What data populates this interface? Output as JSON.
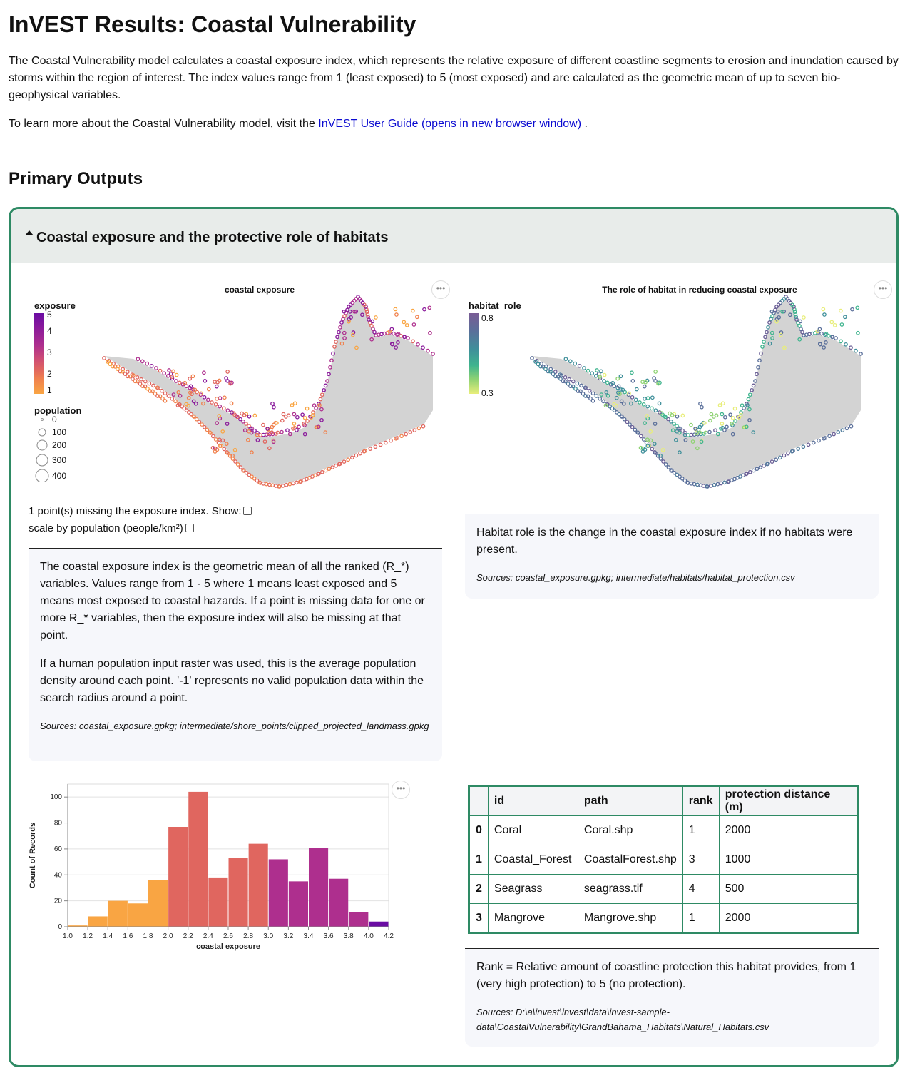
{
  "page": {
    "title": "InVEST Results: Coastal Vulnerability",
    "intro": "The Coastal Vulnerability model calculates a coastal exposure index, which represents the relative exposure of different coastline segments to erosion and inundation caused by storms within the region of interest. The index values range from 1 (least exposed) to 5 (most exposed) and are calculated as the geometric mean of up to seven bio-geophysical variables.",
    "learn_prefix": "To learn more about the Coastal Vulnerability model, visit the ",
    "learn_link": "InVEST User Guide (opens in new browser window) ",
    "learn_suffix": ".",
    "section_heading": "Primary Outputs"
  },
  "panel": {
    "title": "Coastal exposure and the protective role of habitats"
  },
  "exposure_map": {
    "title": "coastal exposure",
    "menu": "•••",
    "legend_exposure_title": "exposure",
    "legend_exposure_labels": [
      "5",
      "4",
      "3",
      "2",
      "1"
    ],
    "legend_population_title": "population",
    "legend_population_labels": [
      "0",
      "100",
      "200",
      "300",
      "400"
    ],
    "missing_text": "1 point(s) missing the exposure index. Show:",
    "scale_text": "scale by population (people/km²)"
  },
  "exposure_note": {
    "p1": "The coastal exposure index is the geometric mean of all the ranked (R_*) variables. Values range from 1 - 5 where 1 means least exposed and 5 means most exposed to coastal hazards. If a point is missing data for one or more R_* variables, then the exposure index will also be missing at that point.",
    "p2": "If a human population input raster was used, this is the average population density around each point. '-1' represents no valid population data within the search radius around a point.",
    "sources": "Sources: coastal_exposure.gpkg; intermediate/shore_points/clipped_projected_landmass.gpkg"
  },
  "habitat_map": {
    "title": "The role of habitat in reducing coastal exposure",
    "menu": "•••",
    "legend_title": "habitat_role",
    "legend_max": "0.8",
    "legend_min": "0.3"
  },
  "habitat_note": {
    "p1": "Habitat role is the change in the coastal exposure index if no habitats were present.",
    "sources": "Sources: coastal_exposure.gpkg; intermediate/habitats/habitat_protection.csv"
  },
  "histogram_menu": "•••",
  "chart_data": {
    "type": "bar",
    "title": "",
    "xlabel": "coastal exposure",
    "ylabel": "Count of Records",
    "bin_edges": [
      1.0,
      1.2,
      1.4,
      1.6,
      1.8,
      2.0,
      2.2,
      2.4,
      2.6,
      2.8,
      3.0,
      3.2,
      3.4,
      3.6,
      3.8,
      4.0,
      4.2
    ],
    "x_tick_labels": [
      "1.0",
      "1.2",
      "1.4",
      "1.6",
      "1.8",
      "2.0",
      "2.2",
      "2.4",
      "2.6",
      "2.8",
      "3.0",
      "3.2",
      "3.4",
      "3.6",
      "3.8",
      "4.0",
      "4.2"
    ],
    "values": [
      1,
      8,
      20,
      18,
      36,
      77,
      104,
      38,
      53,
      64,
      52,
      35,
      61,
      37,
      11,
      4
    ],
    "colors": [
      "#f9a543",
      "#f9a543",
      "#f9a543",
      "#f9a543",
      "#f9a543",
      "#e0665f",
      "#e0665f",
      "#e0665f",
      "#e0665f",
      "#e0665f",
      "#ae2f8e",
      "#ae2f8e",
      "#ae2f8e",
      "#ae2f8e",
      "#ae2f8e",
      "#6a0ca3"
    ],
    "y_ticks": [
      0,
      20,
      40,
      60,
      80,
      100
    ],
    "ylim": [
      0,
      110
    ],
    "grid": true
  },
  "habitat_table": {
    "headers": [
      "",
      "id",
      "path",
      "rank",
      "protection distance (m)"
    ],
    "rows": [
      [
        "0",
        "Coral",
        "Coral.shp",
        "1",
        "2000"
      ],
      [
        "1",
        "Coastal_Forest",
        "CoastalForest.shp",
        "3",
        "1000"
      ],
      [
        "2",
        "Seagrass",
        "seagrass.tif",
        "4",
        "500"
      ],
      [
        "3",
        "Mangrove",
        "Mangrove.shp",
        "1",
        "2000"
      ]
    ]
  },
  "table_note": {
    "p1": "Rank = Relative amount of coastline protection this habitat provides, from 1 (very high protection) to 5 (no protection).",
    "sources": "Sources: D:\\a\\invest\\invest\\data\\invest-sample-data\\CoastalVulnerability\\GrandBahama_Habitats\\Natural_Habitats.csv"
  }
}
